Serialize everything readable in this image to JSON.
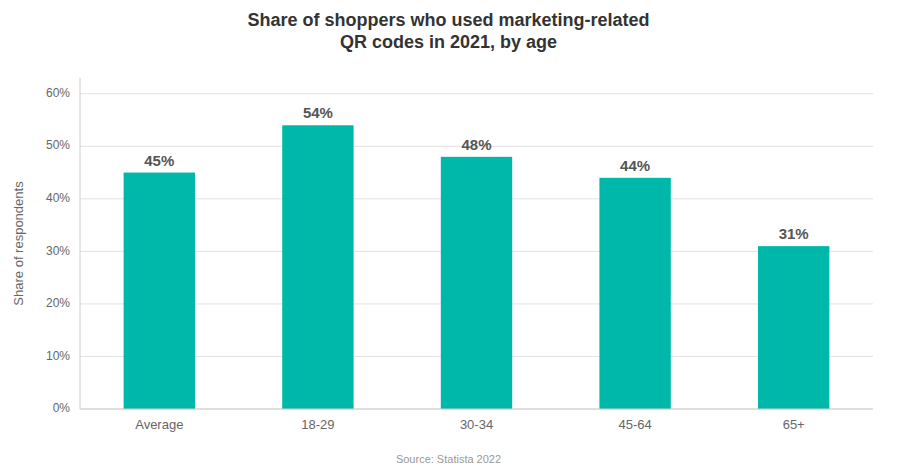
{
  "chart_data": {
    "type": "bar",
    "title": "Share of shoppers who used marketing-related\nQR codes in 2021, by age",
    "categories": [
      "Average",
      "18-29",
      "30-34",
      "45-64",
      "65+"
    ],
    "values": [
      45,
      54,
      48,
      44,
      31
    ],
    "value_labels": [
      "45%",
      "54%",
      "48%",
      "44%",
      "31%"
    ],
    "data_labels": true,
    "color": "#00B8A9",
    "ylabel": "Share of respondents",
    "ylim": [
      0,
      63
    ],
    "yticks": [
      {
        "value": 0,
        "label": "0%"
      },
      {
        "value": 10,
        "label": "10%"
      },
      {
        "value": 20,
        "label": "20%"
      },
      {
        "value": 30,
        "label": "30%"
      },
      {
        "value": 40,
        "label": "40%"
      },
      {
        "value": 50,
        "label": "50%"
      },
      {
        "value": 60,
        "label": "60%"
      }
    ],
    "grid": true,
    "source": "Source: Statista 2022"
  }
}
